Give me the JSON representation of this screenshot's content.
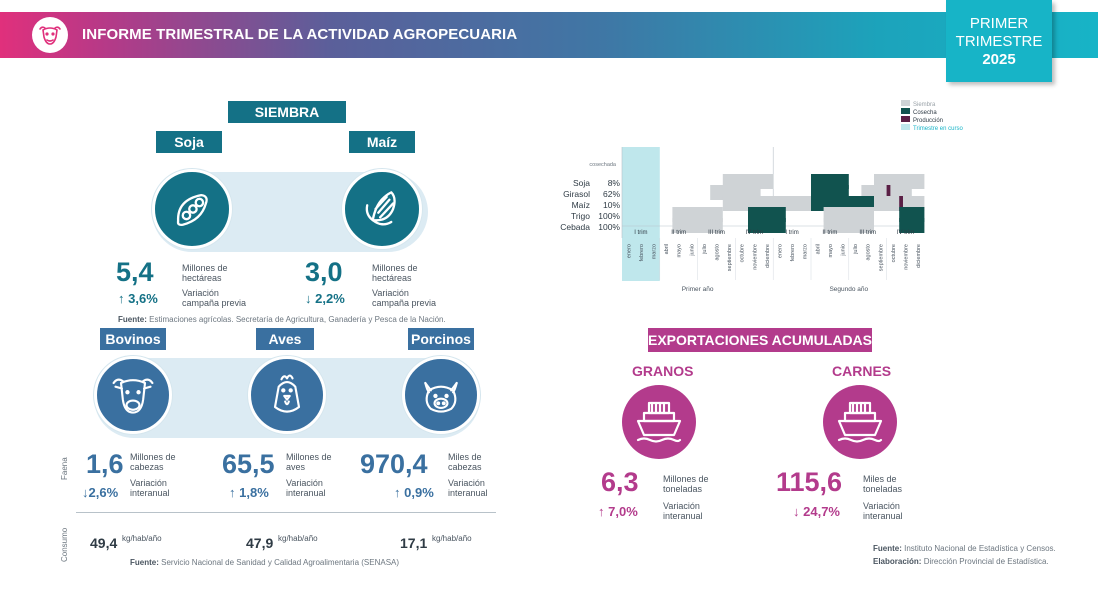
{
  "header": {
    "title": "INFORME TRIMESTRAL DE LA ACTIVIDAD AGROPECUARIA",
    "quarter_line1": "PRIMER",
    "quarter_line2": "TRIMESTRE",
    "quarter_year": "2025",
    "logo_icon": "cow-logo-icon"
  },
  "siembra": {
    "label": "SIEMBRA",
    "soja": {
      "label": "Soja",
      "value": "5,4",
      "unit": "Millones de hectáreas",
      "change": "3,6%",
      "change_dir": "up",
      "change_label": "Variación campaña previa",
      "icon": "soybean-icon"
    },
    "maiz": {
      "label": "Maíz",
      "value": "3,0",
      "unit": "Millones de hectáreas",
      "change": "2,2%",
      "change_dir": "down",
      "change_label": "Variación campaña previa",
      "icon": "corn-icon"
    },
    "source_label": "Fuente:",
    "source_text": "Estimaciones agrícolas. Secretaría de Agricultura, Ganadería y Pesca de la Nación."
  },
  "livestock": {
    "faena_label": "Faena",
    "consumo_label": "Consumo",
    "bovinos": {
      "label": "Bovinos",
      "value": "1,6",
      "unit": "Millones de cabezas",
      "change": "2,6%",
      "change_dir": "down",
      "change_label": "Variación interanual",
      "consumo": "49,4",
      "consumo_unit": "kg/hab/año",
      "icon": "cow-icon"
    },
    "aves": {
      "label": "Aves",
      "value": "65,5",
      "unit": "Millones de aves",
      "change": "1,8%",
      "change_dir": "up",
      "change_label": "Variación interanual",
      "consumo": "47,9",
      "consumo_unit": "kg/hab/año",
      "icon": "chicken-icon"
    },
    "porcinos": {
      "label": "Porcinos",
      "value": "970,4",
      "unit": "Miles de cabezas",
      "change": "0,9%",
      "change_dir": "up",
      "change_label": "Variación interanual",
      "consumo": "17,1",
      "consumo_unit": "kg/hab/año",
      "icon": "pig-icon"
    },
    "source_label": "Fuente:",
    "source_text": "Servicio Nacional de Sanidad y Calidad Agroalimentaria (SENASA)"
  },
  "exports": {
    "label": "EXPORTACIONES ACUMULADAS",
    "granos": {
      "label": "GRANOS",
      "value": "6,3",
      "unit": "Millones de toneladas",
      "change": "7,0%",
      "change_dir": "up",
      "change_label": "Variación interanual",
      "icon": "ship-icon"
    },
    "carnes": {
      "label": "CARNES",
      "value": "115,6",
      "unit": "Miles de toneladas",
      "change": "24,7%",
      "change_dir": "down",
      "change_label": "Variación interanual",
      "icon": "ship-icon"
    }
  },
  "footer": {
    "source_label": "Fuente:",
    "source_text": "Instituto Nacional de Estadística y Censos.",
    "elab_label": "Elaboración:",
    "elab_text": "Dirección Provincial de Estadística."
  },
  "chart_data": {
    "type": "gantt",
    "legend": [
      "Siembra",
      "Cosecha",
      "Producción",
      "Trimestre en curso"
    ],
    "colors": {
      "siembra": "#cfd3d6",
      "cosecha": "#11534f",
      "produccion": "#5a1f45",
      "trimestre": "#bfe7ec"
    },
    "top_label": "cosechada",
    "crops": [
      {
        "name": "Soja",
        "pct": "8%"
      },
      {
        "name": "Girasol",
        "pct": "62%"
      },
      {
        "name": "Maíz",
        "pct": "10%"
      },
      {
        "name": "Trigo",
        "pct": "100%"
      },
      {
        "name": "Cebada",
        "pct": "100%"
      }
    ],
    "quarters": [
      "I trim",
      "II trim",
      "III trim",
      "IV trim",
      "I trim",
      "II trim",
      "III trim",
      "IV trim"
    ],
    "months": [
      "enero",
      "febrero",
      "marzo",
      "abril",
      "mayo",
      "junio",
      "julio",
      "agosto",
      "septiembre",
      "octubre",
      "noviembre",
      "diciembre",
      "enero",
      "febrero",
      "marzo",
      "abril",
      "mayo",
      "junio",
      "julio",
      "agosto",
      "septiembre",
      "octubre",
      "noviembre",
      "diciembre"
    ],
    "years": [
      "Primer año",
      "Segundo año"
    ],
    "current_quarter_months": [
      0,
      2
    ],
    "bars": [
      {
        "crop": 0,
        "type": "siembra",
        "start": 8,
        "end": 12
      },
      {
        "crop": 0,
        "type": "cosecha",
        "start": 15,
        "end": 18
      },
      {
        "crop": 0,
        "type": "siembra",
        "start": 20,
        "end": 24
      },
      {
        "crop": 1,
        "type": "siembra",
        "start": 7,
        "end": 11
      },
      {
        "crop": 1,
        "type": "cosecha",
        "start": 15,
        "end": 18
      },
      {
        "crop": 1,
        "type": "siembra",
        "start": 19,
        "end": 23
      },
      {
        "crop": 1,
        "type": "produccion",
        "start": 21,
        "end": 21.3
      },
      {
        "crop": 2,
        "type": "siembra",
        "start": 8,
        "end": 15
      },
      {
        "crop": 2,
        "type": "cosecha",
        "start": 15,
        "end": 20
      },
      {
        "crop": 2,
        "type": "siembra",
        "start": 20,
        "end": 24
      },
      {
        "crop": 2,
        "type": "produccion",
        "start": 22,
        "end": 22.3
      },
      {
        "crop": 3,
        "type": "siembra",
        "start": 4,
        "end": 8
      },
      {
        "crop": 3,
        "type": "cosecha",
        "start": 10,
        "end": 13
      },
      {
        "crop": 3,
        "type": "siembra",
        "start": 16,
        "end": 20
      },
      {
        "crop": 3,
        "type": "cosecha",
        "start": 22,
        "end": 24
      },
      {
        "crop": 4,
        "type": "siembra",
        "start": 4,
        "end": 8
      },
      {
        "crop": 4,
        "type": "cosecha",
        "start": 10,
        "end": 13
      },
      {
        "crop": 4,
        "type": "siembra",
        "start": 16,
        "end": 20
      },
      {
        "crop": 4,
        "type": "cosecha",
        "start": 22,
        "end": 24
      }
    ]
  }
}
